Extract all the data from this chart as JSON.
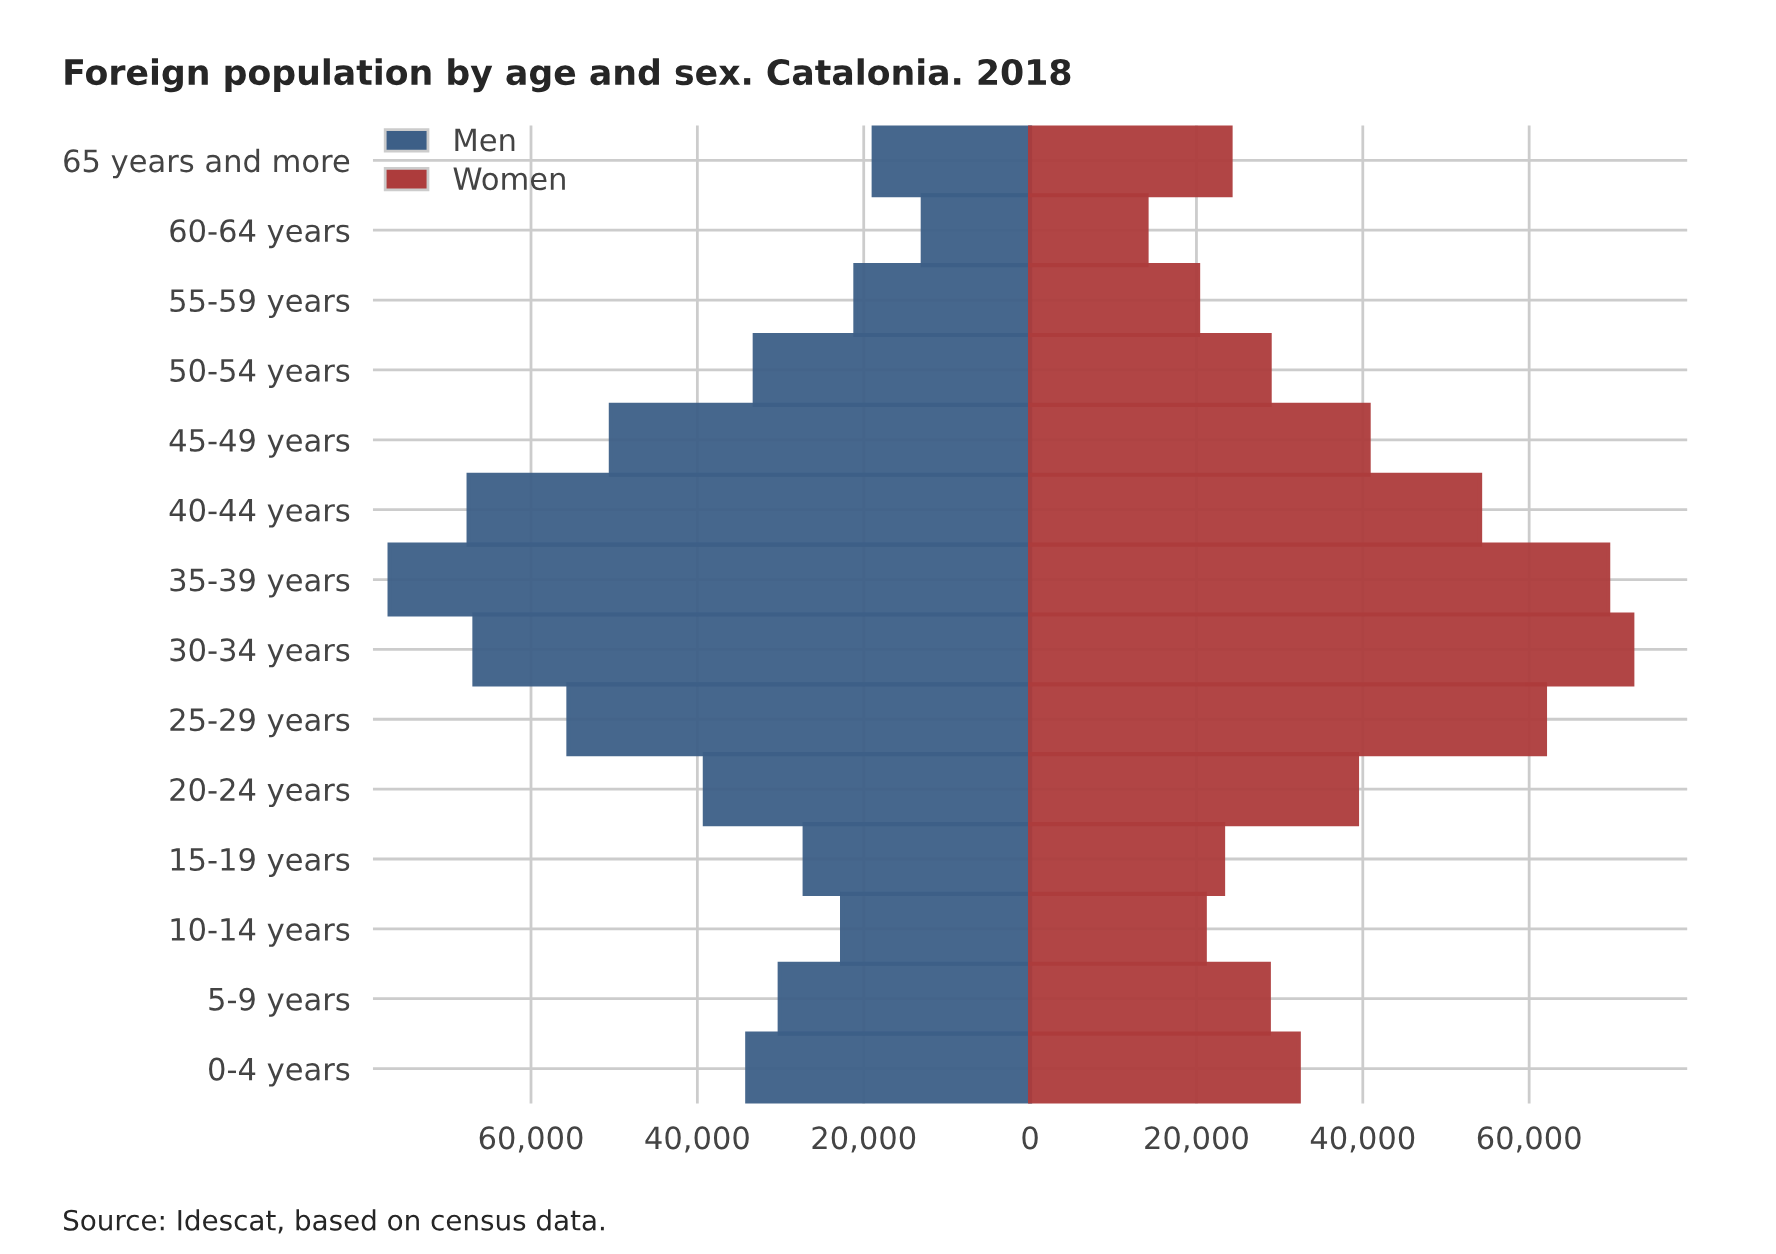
{
  "chart_data": {
    "type": "bar",
    "orientation": "horizontal",
    "title": "Foreign population by age and sex. Catalonia. 2018",
    "categories": [
      "65 years and more",
      "60-64 years",
      "55-59 years",
      "50-54 years",
      "45-49 years",
      "40-44 years",
      "35-39 years",
      "30-34 years",
      "25-29 years",
      "20-24 years",
      "15-19 years",
      "10-14 years",
      "5-9 years",
      "0-4 years"
    ],
    "series": [
      {
        "name": "Men",
        "color": "#3d5f87",
        "values": [
          -18800,
          -12900,
          -21000,
          -33100,
          -50400,
          -67500,
          -77000,
          -66800,
          -55500,
          -39100,
          -27100,
          -22600,
          -30100,
          -34000
        ]
      },
      {
        "name": "Women",
        "color": "#ad3c3c",
        "values": [
          24100,
          14000,
          20200,
          28800,
          40700,
          54100,
          69500,
          72400,
          61900,
          39300,
          23200,
          21000,
          28700,
          32300
        ]
      }
    ],
    "xlim": [
      -79000,
      79000
    ],
    "xticks": [
      {
        "value": -60000,
        "label": "60,000"
      },
      {
        "value": -40000,
        "label": "40,000"
      },
      {
        "value": -20000,
        "label": "20,000"
      },
      0,
      {
        "value": 20000,
        "label": "20,000"
      },
      {
        "value": 40000,
        "label": "40,000"
      },
      {
        "value": 60000,
        "label": "60,000"
      }
    ],
    "grid": true,
    "legend": "top left",
    "annotations": [
      "Source: Idescat, based on census data."
    ]
  }
}
